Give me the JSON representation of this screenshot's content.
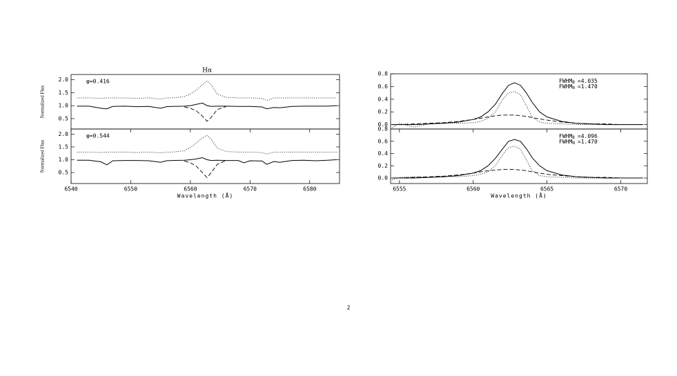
{
  "page_number": "2",
  "chart_data": [
    {
      "type": "line",
      "title": "Hα",
      "ylabel": "Normalized Flux",
      "phase": "φ=0.416",
      "x": [
        6541,
        6543,
        6545,
        6546,
        6547,
        6549,
        6551,
        6553,
        6555,
        6556,
        6557,
        6559,
        6560,
        6561,
        6562,
        6562.8,
        6563.5,
        6564.5,
        6566,
        6568,
        6570,
        6572,
        6572.8,
        6574,
        6575,
        6577,
        6579,
        6581,
        6583,
        6584.5
      ],
      "series": [
        {
          "color": "#000000",
          "style": "dotted",
          "values": [
            1.3,
            1.3,
            1.28,
            1.3,
            1.3,
            1.3,
            1.28,
            1.3,
            1.25,
            1.3,
            1.3,
            1.35,
            1.45,
            1.6,
            1.8,
            1.95,
            1.8,
            1.45,
            1.32,
            1.3,
            1.3,
            1.28,
            1.2,
            1.3,
            1.3,
            1.3,
            1.3,
            1.3,
            1.3,
            1.3
          ]
        },
        {
          "color": "#000000",
          "style": "solid",
          "values": [
            0.98,
            0.98,
            0.9,
            0.88,
            0.97,
            0.98,
            0.96,
            0.97,
            0.9,
            0.96,
            0.97,
            0.98,
            1.0,
            1.05,
            1.1,
            1.0,
            0.97,
            0.98,
            0.98,
            0.97,
            0.97,
            0.95,
            0.88,
            0.93,
            0.92,
            0.97,
            0.98,
            0.98,
            0.98,
            1.0
          ]
        },
        {
          "color": "#000000",
          "style": "dashed",
          "values": [
            null,
            null,
            null,
            null,
            null,
            null,
            null,
            null,
            null,
            null,
            null,
            0.95,
            0.9,
            0.8,
            0.6,
            0.4,
            0.55,
            0.85,
            0.97,
            null,
            null,
            null,
            null,
            null,
            null,
            null,
            null,
            null,
            null,
            null
          ]
        }
      ],
      "xlim": [
        6540,
        6585
      ],
      "ylim": [
        0.1,
        2.2
      ],
      "yticks": [
        0.5,
        {
          "value": 1,
          "label": "1.0"
        },
        1.5,
        {
          "value": 2,
          "label": "2.0"
        }
      ]
    },
    {
      "type": "line",
      "ylabel": "Normalized Flux",
      "phase": "φ=0.544",
      "xlabel": "Wavelength (Å)",
      "x": [
        6541,
        6543,
        6545,
        6546,
        6547,
        6549,
        6551,
        6553,
        6555,
        6556,
        6557,
        6559,
        6560,
        6561,
        6562,
        6562.8,
        6563.5,
        6564.5,
        6566,
        6568,
        6569,
        6570,
        6572,
        6572.8,
        6574,
        6575,
        6577,
        6579,
        6581,
        6583,
        6584.5
      ],
      "series": [
        {
          "color": "#000000",
          "style": "dotted",
          "values": [
            1.3,
            1.3,
            1.28,
            1.3,
            1.3,
            1.3,
            1.28,
            1.3,
            1.27,
            1.3,
            1.3,
            1.35,
            1.48,
            1.65,
            1.85,
            1.95,
            1.8,
            1.45,
            1.32,
            1.3,
            1.3,
            1.3,
            1.28,
            1.22,
            1.3,
            1.3,
            1.3,
            1.3,
            1.3,
            1.3,
            1.3
          ]
        },
        {
          "color": "#000000",
          "style": "solid",
          "values": [
            0.98,
            0.98,
            0.92,
            0.8,
            0.96,
            0.97,
            0.97,
            0.96,
            0.9,
            0.96,
            0.97,
            0.98,
            1.0,
            1.03,
            1.08,
            1.0,
            0.97,
            0.98,
            0.97,
            0.97,
            0.88,
            0.96,
            0.95,
            0.82,
            0.93,
            0.9,
            0.97,
            0.98,
            0.96,
            0.98,
            1.0
          ]
        },
        {
          "color": "#000000",
          "style": "dashed",
          "values": [
            null,
            null,
            null,
            null,
            null,
            null,
            null,
            null,
            null,
            null,
            null,
            0.95,
            0.88,
            0.75,
            0.5,
            0.3,
            0.5,
            0.82,
            0.97,
            null,
            null,
            null,
            null,
            null,
            null,
            null,
            null,
            null,
            null,
            null,
            null
          ]
        }
      ],
      "xlim": [
        6540,
        6585
      ],
      "ylim": [
        0.07,
        2.2
      ],
      "xticks": [
        6540,
        6550,
        6560,
        6570,
        6580
      ],
      "yticks": [
        0.5,
        {
          "value": 1,
          "label": "1.0"
        },
        1.5,
        {
          "value": 2,
          "label": "2.0"
        }
      ]
    },
    {
      "type": "line",
      "fwhm": [
        {
          "label": "FWHM",
          "sub": "B",
          "value": "=4.035"
        },
        {
          "label": "FWHM",
          "sub": "N",
          "value": "=1.470"
        }
      ],
      "x": [
        6554.5,
        6555,
        6556,
        6557,
        6558,
        6559,
        6560,
        6560.5,
        6561,
        6561.5,
        6562,
        6562.4,
        6562.8,
        6563.2,
        6563.6,
        6564,
        6564.5,
        6565,
        6566,
        6567,
        6568,
        6569,
        6570,
        6571.5
      ],
      "series": [
        {
          "color": "#000000",
          "style": "solid",
          "values": [
            0,
            0,
            0,
            0.01,
            0.02,
            0.04,
            0.08,
            0.12,
            0.2,
            0.32,
            0.5,
            0.62,
            0.66,
            0.62,
            0.5,
            0.35,
            0.2,
            0.12,
            0.05,
            0.02,
            0.01,
            0,
            0,
            0
          ]
        },
        {
          "color": "#000000",
          "style": "dotted",
          "values": [
            -0.05,
            0.02,
            -0.04,
            0.01,
            0.03,
            0.02,
            0.03,
            0.05,
            0.1,
            0.2,
            0.4,
            0.5,
            0.52,
            0.47,
            0.3,
            0.12,
            0.04,
            0.02,
            0.01,
            0,
            0,
            0,
            0,
            0
          ]
        },
        {
          "color": "#000000",
          "style": "dashed",
          "values": [
            0,
            0,
            0.01,
            0.02,
            0.03,
            0.05,
            0.08,
            0.1,
            0.12,
            0.14,
            0.15,
            0.15,
            0.15,
            0.14,
            0.13,
            0.11,
            0.09,
            0.07,
            0.04,
            0.02,
            0.01,
            0.01,
            0,
            0
          ]
        }
      ],
      "xlim": [
        6554.4,
        6571.8
      ],
      "ylim": [
        -0.07,
        0.8
      ],
      "yticks": [
        {
          "value": 0,
          "label": "0.0"
        },
        0.2,
        0.4,
        0.6,
        0.8
      ]
    },
    {
      "type": "line",
      "xlabel": "Wavelength (Å)",
      "fwhm": [
        {
          "label": "FWHM",
          "sub": "B",
          "value": "=4.096"
        },
        {
          "label": "FWHM",
          "sub": "N",
          "value": "=1.470"
        }
      ],
      "x": [
        6554.5,
        6555,
        6556,
        6557,
        6558,
        6559,
        6560,
        6560.5,
        6561,
        6561.5,
        6562,
        6562.4,
        6562.8,
        6563.2,
        6563.6,
        6564,
        6564.5,
        6565,
        6566,
        6567,
        6568,
        6569,
        6570,
        6571.5
      ],
      "series": [
        {
          "color": "#000000",
          "style": "solid",
          "values": [
            0,
            0,
            0,
            0.01,
            0.02,
            0.04,
            0.08,
            0.12,
            0.2,
            0.32,
            0.48,
            0.6,
            0.63,
            0.6,
            0.48,
            0.33,
            0.2,
            0.12,
            0.05,
            0.02,
            0.01,
            0,
            0,
            0
          ]
        },
        {
          "color": "#000000",
          "style": "dotted",
          "values": [
            -0.03,
            0.01,
            0.02,
            0.01,
            0.03,
            0.02,
            0.04,
            0.06,
            0.1,
            0.2,
            0.38,
            0.5,
            0.52,
            0.47,
            0.3,
            0.12,
            0.04,
            0.02,
            0.01,
            0,
            0,
            0,
            0,
            0
          ]
        },
        {
          "color": "#000000",
          "style": "dashed",
          "values": [
            0,
            0,
            0.01,
            0.02,
            0.03,
            0.05,
            0.08,
            0.1,
            0.12,
            0.13,
            0.14,
            0.14,
            0.14,
            0.13,
            0.12,
            0.1,
            0.08,
            0.06,
            0.04,
            0.02,
            0.01,
            0.01,
            0,
            0
          ]
        }
      ],
      "xlim": [
        6554.4,
        6571.8
      ],
      "ylim": [
        -0.09,
        0.8
      ],
      "xticks": [
        6555,
        6560,
        6565,
        6570
      ],
      "yticks": [
        {
          "value": 0,
          "label": "0.0"
        },
        0.2,
        0.4,
        0.6,
        0.8
      ]
    }
  ]
}
